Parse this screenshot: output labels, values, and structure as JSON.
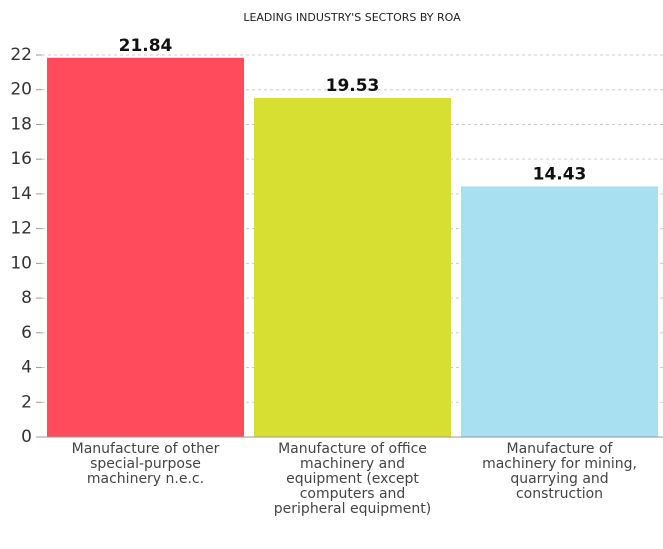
{
  "chart_data": {
    "type": "bar",
    "title": "LEADING INDUSTRY'S SECTORS BY ROA",
    "categories": [
      "Manufacture of other special-purpose machinery n.e.c.",
      "Manufacture of office machinery and equipment (except computers and peripheral equipment)",
      "Manufacture of machinery for mining, quarrying and construction"
    ],
    "values": [
      21.84,
      19.53,
      14.43
    ],
    "colors": [
      "#ff4b5c",
      "#d6df32",
      "#a9e0f1"
    ],
    "ylim": [
      0,
      22
    ],
    "yticks": [
      0,
      2,
      4,
      6,
      8,
      10,
      12,
      14,
      16,
      18,
      20,
      22
    ],
    "grid": true
  }
}
